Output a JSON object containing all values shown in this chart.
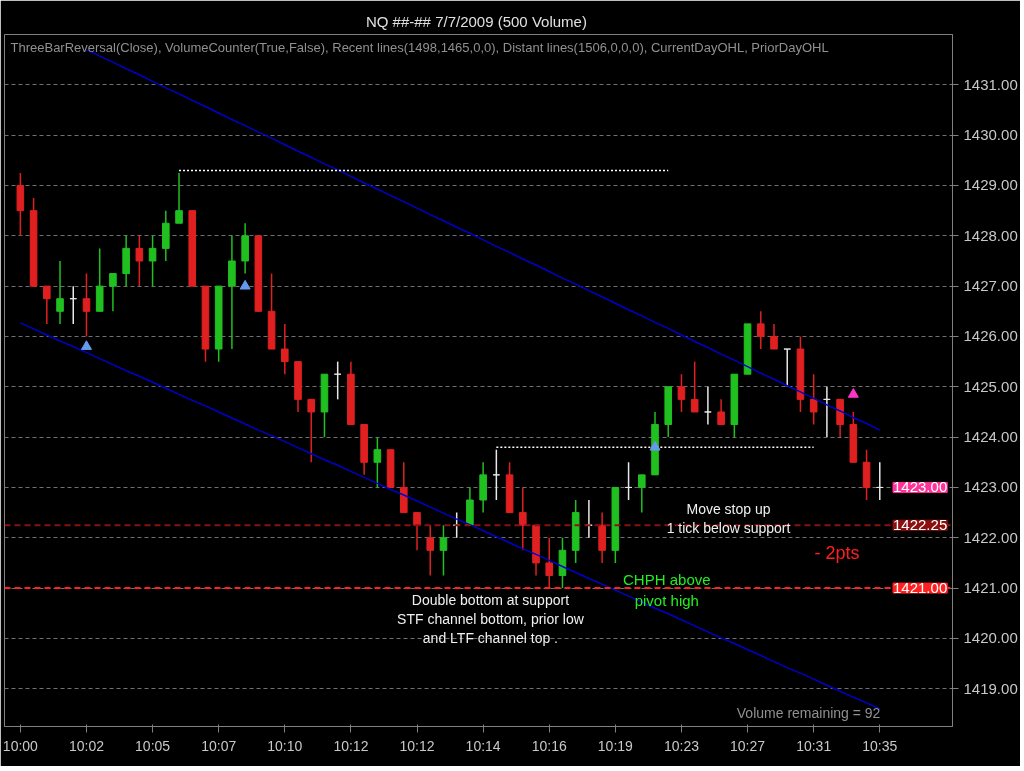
{
  "chart_data": {
    "type": "candlestick",
    "title": "NQ ##-##  7/7/2009 (500 Volume)",
    "categories": [
      "10:00",
      null,
      null,
      null,
      null,
      "10:02",
      null,
      null,
      null,
      null,
      "10:05",
      null,
      null,
      null,
      null,
      "10:07",
      null,
      null,
      null,
      null,
      "10:10",
      null,
      null,
      null,
      null,
      "10:12",
      null,
      null,
      null,
      null,
      "10:12",
      null,
      null,
      null,
      null,
      "10:14",
      null,
      null,
      null,
      null,
      "10:16",
      null,
      null,
      null,
      null,
      "10:19",
      null,
      null,
      null,
      null,
      "10:23",
      null,
      null,
      null,
      null,
      "10:27",
      null,
      null,
      null,
      null,
      "10:31",
      null,
      null,
      null,
      null,
      "10:35"
    ],
    "ohlc": [
      [
        1429.0,
        1429.25,
        1428.0,
        1428.5
      ],
      [
        1428.5,
        1428.75,
        1427.0,
        1427.0
      ],
      [
        1427.0,
        1427.0,
        1426.25,
        1426.75
      ],
      [
        1426.5,
        1427.5,
        1426.25,
        1426.75
      ],
      [
        1426.75,
        1427.0,
        1426.25,
        1426.75
      ],
      [
        1426.75,
        1427.25,
        1426.0,
        1426.5
      ],
      [
        1426.5,
        1427.75,
        1426.5,
        1427.0
      ],
      [
        1427.0,
        1427.25,
        1426.5,
        1427.25
      ],
      [
        1427.25,
        1428.0,
        1427.0,
        1427.75
      ],
      [
        1427.75,
        1428.0,
        1427.0,
        1427.5
      ],
      [
        1427.5,
        1428.0,
        1427.0,
        1427.75
      ],
      [
        1427.75,
        1428.5,
        1427.5,
        1428.25
      ],
      [
        1428.25,
        1429.25,
        1428.25,
        1428.5
      ],
      [
        1428.5,
        1428.5,
        1427.0,
        1427.0
      ],
      [
        1427.0,
        1427.0,
        1425.5,
        1425.75
      ],
      [
        1425.75,
        1427.0,
        1425.5,
        1427.0
      ],
      [
        1427.0,
        1428.0,
        1425.75,
        1427.5
      ],
      [
        1427.5,
        1428.25,
        1427.25,
        1428.0
      ],
      [
        1428.0,
        1428.0,
        1426.5,
        1426.5
      ],
      [
        1426.5,
        1427.25,
        1425.75,
        1425.75
      ],
      [
        1425.75,
        1426.25,
        1425.25,
        1425.5
      ],
      [
        1425.5,
        1425.5,
        1424.5,
        1424.75
      ],
      [
        1424.75,
        1424.75,
        1423.5,
        1424.5
      ],
      [
        1424.5,
        1425.25,
        1424.0,
        1425.25
      ],
      [
        1425.25,
        1425.5,
        1424.75,
        1425.25
      ],
      [
        1425.25,
        1425.5,
        1424.25,
        1424.25
      ],
      [
        1424.25,
        1424.25,
        1423.25,
        1423.5
      ],
      [
        1423.5,
        1424.0,
        1423.0,
        1423.75
      ],
      [
        1423.75,
        1423.75,
        1423.0,
        1423.0
      ],
      [
        1423.0,
        1423.5,
        1422.5,
        1422.5
      ],
      [
        1422.5,
        1422.5,
        1421.75,
        1422.25
      ],
      [
        1422.0,
        1422.25,
        1421.25,
        1421.75
      ],
      [
        1421.75,
        1422.25,
        1421.25,
        1422.0
      ],
      [
        1422.25,
        1422.5,
        1422.0,
        1422.25
      ],
      [
        1422.25,
        1423.0,
        1422.25,
        1422.75
      ],
      [
        1422.75,
        1423.5,
        1422.5,
        1423.25
      ],
      [
        1423.25,
        1423.75,
        1422.75,
        1423.25
      ],
      [
        1423.25,
        1423.5,
        1422.5,
        1422.5
      ],
      [
        1422.5,
        1423.0,
        1421.75,
        1422.25
      ],
      [
        1422.25,
        1422.25,
        1421.25,
        1421.5
      ],
      [
        1421.5,
        1422.0,
        1421.0,
        1421.25
      ],
      [
        1421.25,
        1422.0,
        1421.0,
        1421.75
      ],
      [
        1421.75,
        1422.75,
        1421.5,
        1422.5
      ],
      [
        1422.25,
        1422.75,
        1422.0,
        1422.25
      ],
      [
        1422.25,
        1422.5,
        1421.5,
        1421.75
      ],
      [
        1421.75,
        1423.0,
        1421.5,
        1423.0
      ],
      [
        1423.0,
        1423.5,
        1422.75,
        1423.0
      ],
      [
        1423.0,
        1423.25,
        1422.5,
        1423.25
      ],
      [
        1423.25,
        1424.5,
        1423.25,
        1424.25
      ],
      [
        1424.25,
        1425.0,
        1424.0,
        1425.0
      ],
      [
        1425.0,
        1425.25,
        1424.5,
        1424.75
      ],
      [
        1424.75,
        1425.5,
        1424.5,
        1424.5
      ],
      [
        1424.5,
        1425.0,
        1424.25,
        1424.5
      ],
      [
        1424.5,
        1424.75,
        1424.25,
        1424.25
      ],
      [
        1424.25,
        1425.25,
        1424.0,
        1425.25
      ],
      [
        1425.25,
        1426.25,
        1425.25,
        1426.25
      ],
      [
        1426.25,
        1426.5,
        1425.75,
        1426.0
      ],
      [
        1426.0,
        1426.25,
        1425.75,
        1425.75
      ],
      [
        1425.75,
        1425.75,
        1425.0,
        1425.75
      ],
      [
        1425.75,
        1426.0,
        1424.5,
        1424.75
      ],
      [
        1424.75,
        1425.25,
        1424.25,
        1424.5
      ],
      [
        1424.75,
        1425.0,
        1424.0,
        1424.75
      ],
      [
        1424.75,
        1424.75,
        1424.0,
        1424.25
      ],
      [
        1424.25,
        1424.5,
        1423.5,
        1423.5
      ],
      [
        1423.5,
        1423.75,
        1422.75,
        1423.0
      ],
      [
        1423.0,
        1423.5,
        1422.75,
        1423.0
      ]
    ],
    "colors": [
      "#e02020",
      "#e02020",
      "#e02020",
      "#20c020",
      "#e8e8e8",
      "#e02020",
      "#20c020",
      "#20c020",
      "#20c020",
      "#e02020",
      "#20c020",
      "#20c020",
      "#20c020",
      "#e02020",
      "#e02020",
      "#20c020",
      "#20c020",
      "#20c020",
      "#e02020",
      "#e02020",
      "#e02020",
      "#e02020",
      "#e02020",
      "#20c020",
      "#e8e8e8",
      "#e02020",
      "#e02020",
      "#20c020",
      "#e02020",
      "#e02020",
      "#e02020",
      "#e02020",
      "#20c020",
      "#e8e8e8",
      "#20c020",
      "#20c020",
      "#e8e8e8",
      "#e02020",
      "#e02020",
      "#e02020",
      "#e02020",
      "#20c020",
      "#20c020",
      "#e8e8e8",
      "#e02020",
      "#20c020",
      "#e8e8e8",
      "#20c020",
      "#20c020",
      "#20c020",
      "#e02020",
      "#e02020",
      "#e8e8e8",
      "#e02020",
      "#20c020",
      "#20c020",
      "#e02020",
      "#e02020",
      "#e8e8e8",
      "#e02020",
      "#e02020",
      "#e8e8e8",
      "#e02020",
      "#e02020",
      "#e02020",
      "#e8e8e8"
    ],
    "series": [
      {
        "type": "line",
        "color": "#0000c8",
        "values": [
          null,
          null,
          null,
          null,
          null,
          1431.7,
          1431.57,
          1431.45,
          1431.32,
          1431.2,
          1431.07,
          1430.94,
          1430.82,
          1430.69,
          1430.57,
          1430.44,
          1430.31,
          1430.19,
          1430.06,
          1429.94,
          1429.81,
          1429.68,
          1429.56,
          1429.43,
          1429.31,
          1429.18,
          1429.05,
          1428.93,
          1428.8,
          1428.68,
          1428.55,
          1428.42,
          1428.3,
          1428.17,
          1428.05,
          1427.92,
          1427.79,
          1427.67,
          1427.54,
          1427.42,
          1427.29,
          1427.16,
          1427.04,
          1426.91,
          1426.79,
          1426.66,
          1426.53,
          1426.41,
          1426.28,
          1426.16,
          1426.03,
          1425.9,
          1425.78,
          1425.65,
          1425.53,
          1425.4,
          1425.27,
          1425.15,
          1425.02,
          1424.9,
          1424.77,
          1424.64,
          1424.52,
          1424.39,
          1424.27,
          1424.14
        ]
      },
      {
        "type": "line",
        "color": "#0000c8",
        "values": [
          1426.27,
          1426.15,
          1426.03,
          1425.91,
          1425.8,
          1425.68,
          1425.56,
          1425.44,
          1425.32,
          1425.21,
          1425.09,
          1424.97,
          1424.85,
          1424.73,
          1424.62,
          1424.5,
          1424.38,
          1424.26,
          1424.14,
          1424.03,
          1423.91,
          1423.79,
          1423.67,
          1423.55,
          1423.44,
          1423.32,
          1423.2,
          1423.08,
          1422.96,
          1422.85,
          1422.73,
          1422.61,
          1422.49,
          1422.37,
          1422.26,
          1422.14,
          1422.02,
          1421.9,
          1421.78,
          1421.67,
          1421.55,
          1421.43,
          1421.31,
          1421.19,
          1421.08,
          1420.96,
          1420.84,
          1420.72,
          1420.6,
          1420.49,
          1420.37,
          1420.25,
          1420.13,
          1420.01,
          1419.9,
          1419.78,
          1419.66,
          1419.54,
          1419.42,
          1419.31,
          1419.19,
          1419.07,
          1418.95,
          1418.83,
          1418.72,
          1418.6
        ]
      },
      {
        "type": "line",
        "color": "#ffffff",
        "line_style": "dotted",
        "values": [
          null,
          null,
          null,
          null,
          null,
          null,
          null,
          null,
          null,
          null,
          null,
          null,
          1429.3,
          1429.3,
          1429.3,
          1429.3,
          1429.3,
          1429.3,
          1429.3,
          1429.3,
          1429.3,
          1429.3,
          1429.3,
          1429.3,
          1429.3,
          1429.3,
          1429.3,
          1429.3,
          1429.3,
          1429.3,
          1429.3,
          1429.3,
          1429.3,
          1429.3,
          1429.3,
          1429.3,
          1429.3,
          1429.3,
          1429.3,
          1429.3,
          1429.3,
          1429.3,
          1429.3,
          1429.3,
          1429.3,
          1429.3,
          1429.3,
          1429.3,
          1429.3,
          1429.3,
          null,
          null,
          null,
          null,
          null,
          null,
          null,
          null,
          null,
          null,
          null,
          null,
          null,
          null,
          null,
          null
        ]
      },
      {
        "type": "line",
        "color": "#ffffff",
        "line_style": "dotted",
        "values": [
          null,
          null,
          null,
          null,
          null,
          null,
          null,
          null,
          null,
          null,
          null,
          null,
          null,
          null,
          null,
          null,
          null,
          null,
          null,
          null,
          null,
          null,
          null,
          null,
          null,
          null,
          null,
          null,
          null,
          null,
          null,
          null,
          null,
          null,
          null,
          null,
          1423.8,
          1423.8,
          1423.8,
          1423.8,
          1423.8,
          1423.8,
          1423.8,
          1423.8,
          1423.8,
          1423.8,
          1423.8,
          1423.8,
          1423.8,
          1423.8,
          1423.8,
          1423.8,
          1423.8,
          1423.8,
          1423.8,
          1423.8,
          1423.8,
          1423.8,
          1423.8,
          1423.8,
          1423.8,
          null,
          null,
          null,
          null,
          null
        ]
      },
      {
        "type": "scatter",
        "color": "#6699ee",
        "marker": "triangle",
        "values": [
          null,
          null,
          null,
          null,
          null,
          1425.8,
          null,
          null,
          null,
          null,
          null,
          null,
          null,
          null,
          null,
          null,
          null,
          1427.0,
          null,
          null,
          null,
          null,
          null,
          null,
          null,
          null,
          null,
          null,
          null,
          null,
          null,
          null,
          null,
          null,
          null,
          null,
          null,
          null,
          null,
          null,
          null,
          null,
          null,
          null,
          null,
          null,
          null,
          null,
          1423.8,
          null,
          null,
          null,
          null,
          null,
          null,
          null,
          null,
          null,
          null,
          null,
          null,
          null,
          null,
          null,
          null,
          null
        ]
      },
      {
        "type": "scatter",
        "color": "#ff33cc",
        "marker": "triangle",
        "values": [
          null,
          null,
          null,
          null,
          null,
          null,
          null,
          null,
          null,
          null,
          null,
          null,
          null,
          null,
          null,
          null,
          null,
          null,
          null,
          null,
          null,
          null,
          null,
          null,
          null,
          null,
          null,
          null,
          null,
          null,
          null,
          null,
          null,
          null,
          null,
          null,
          null,
          null,
          null,
          null,
          null,
          null,
          null,
          null,
          null,
          null,
          null,
          null,
          null,
          null,
          null,
          null,
          null,
          null,
          null,
          null,
          null,
          null,
          null,
          null,
          null,
          null,
          null,
          1424.85,
          null,
          null
        ]
      }
    ],
    "ylim": [
      1418.25,
      1432.0
    ],
    "yticks": [
      {
        "value": 1419,
        "label": "1419.00"
      },
      {
        "value": 1420,
        "label": "1420.00"
      },
      {
        "value": 1421,
        "label": "1421.00"
      },
      {
        "value": 1422,
        "label": "1422.00"
      },
      {
        "value": 1423,
        "label": "1423.00"
      },
      {
        "value": 1424,
        "label": "1424.00"
      },
      {
        "value": 1425,
        "label": "1425.00"
      },
      {
        "value": 1426,
        "label": "1426.00"
      },
      {
        "value": 1427,
        "label": "1427.00"
      },
      {
        "value": 1428,
        "label": "1428.00"
      },
      {
        "value": 1429,
        "label": "1429.00"
      },
      {
        "value": 1430,
        "label": "1430.00"
      },
      {
        "value": 1431,
        "label": "1431.00"
      }
    ],
    "ref_lines": [
      {
        "axis": "y",
        "value": 1422.25,
        "label": "1422.25",
        "color": "#8b1010",
        "line_style": "dashed"
      },
      {
        "axis": "y",
        "value": 1421.0,
        "label": "1421.00",
        "color": "#ff2020",
        "line_style": "dashed"
      }
    ],
    "annotations": [
      "ThreeBarReversal(Close),  VolumeCounter(True,False),  Recent lines(1498,1465,0,0),  Distant lines(1506,0,0,0),  CurrentDayOHL,  PriorDayOHL",
      "Volume remaining = 92",
      "Double bottom at support\nSTF channel bottom, prior low\nand LTF channel top .",
      "CHPH above\npivot high",
      "Move stop up\n1 tick below support",
      "- 2pts",
      "1423.00"
    ],
    "grid": "y"
  }
}
